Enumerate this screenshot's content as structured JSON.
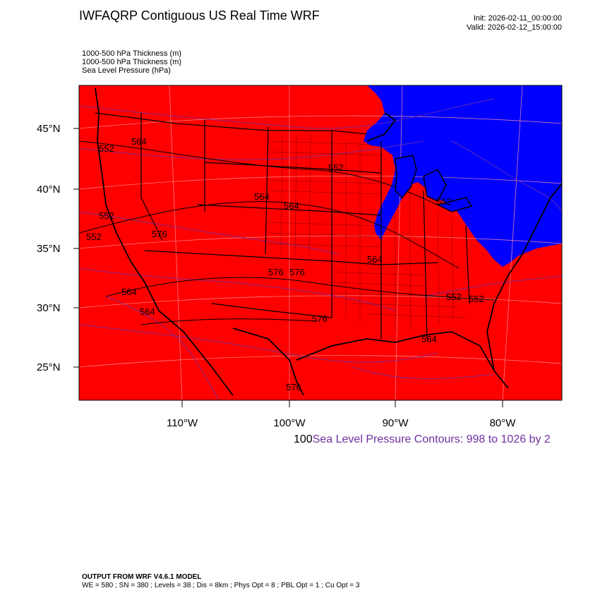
{
  "header": {
    "title": "IWFAQRP Contiguous US Real Time WRF",
    "init": "Init: 2026-02-11_00:00:00",
    "valid": "Valid: 2026-02-12_15:00:00"
  },
  "fields": [
    "1000-500 hPa Thickness   (m)",
    "1000-500 hPa Thickness   (m)",
    "Sea Level Pressure   (hPa)"
  ],
  "axes": {
    "lat_labels": [
      "45°N",
      "40°N",
      "35°N",
      "30°N",
      "25°N"
    ],
    "lon_labels": [
      "110°W",
      "100°W",
      "90°W",
      "80°W"
    ]
  },
  "colors": {
    "warm_fill": "#ff0000",
    "cold_fill": "#0000ff",
    "slp_contours": "#7030a0",
    "thickness_contours": "#000000"
  },
  "contour_labels": [
    "552",
    "564",
    "564",
    "552",
    "552",
    "564",
    "576",
    "576",
    "564",
    "552",
    "576",
    "564",
    "576",
    "564",
    "564",
    "552",
    "552",
    "552",
    "576"
  ],
  "contour_info": {
    "number": "100",
    "text": "Sea Level Pressure Contours: 998 to 1026 by 2"
  },
  "footer": {
    "model": "OUTPUT FROM WRF V4.6.1 MODEL",
    "details": "WE = 580 ; SN = 380 ; Levels = 38 ; Dis = 8km ; Phys Opt = 8 ; PBL Opt = 1 ; Cu Opt = 3"
  }
}
